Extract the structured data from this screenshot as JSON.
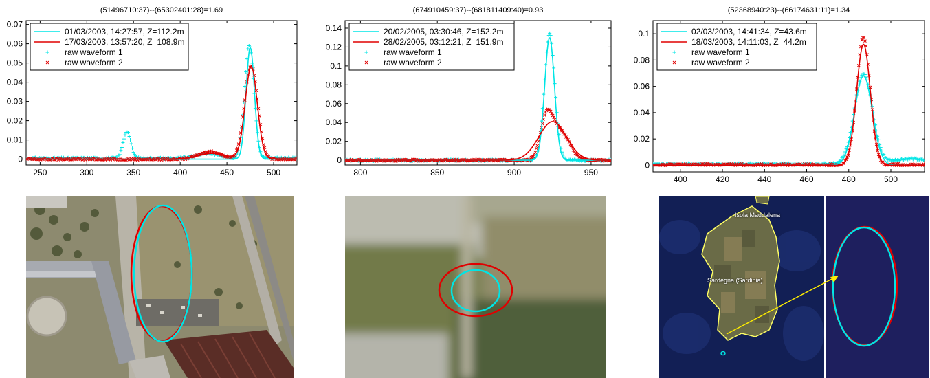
{
  "colors": {
    "waveform_1": "#00e5e5",
    "waveform_2": "#e00000",
    "arrow": "#ffee00",
    "coastline": "#ffff66"
  },
  "chart_data": [
    {
      "type": "line",
      "title": "(51496710:37)--(65302401:28)=1.69",
      "xlim": [
        235,
        525
      ],
      "ylim": [
        -0.003,
        0.072
      ],
      "xticks": [
        250,
        300,
        350,
        400,
        450,
        500
      ],
      "yticks": [
        0,
        0.01,
        0.02,
        0.03,
        0.04,
        0.05,
        0.06,
        0.07
      ],
      "ytick_labels": [
        "0",
        "0.01",
        "0.02",
        "0.03",
        "0.04",
        "0.05",
        "0.06",
        "0.07"
      ],
      "legend_position": "top-left",
      "grid": false,
      "series": [
        {
          "name": "01/03/2003, 14:27:57, Z=112.2m",
          "kind": "fit",
          "peaks": [
            {
              "center": 475,
              "height": 0.058,
              "width": 4.5
            }
          ],
          "baseline": 0
        },
        {
          "name": "17/03/2003, 13:57:20, Z=108.9m",
          "kind": "fit",
          "peaks": [
            {
              "center": 476,
              "height": 0.048,
              "width": 6.5
            },
            {
              "center": 435,
              "height": 0.003,
              "width": 15
            }
          ],
          "baseline": 0
        },
        {
          "name": "raw waveform 1",
          "kind": "raw",
          "marker": "+",
          "peaks": [
            {
              "center": 474,
              "height": 0.059,
              "width": 5
            },
            {
              "center": 343,
              "height": 0.014,
              "width": 4
            },
            {
              "center": 430,
              "height": 0.0025,
              "width": 12
            }
          ],
          "baseline": 0.0005
        },
        {
          "name": "raw waveform 2",
          "kind": "raw",
          "marker": "x",
          "peaks": [
            {
              "center": 476,
              "height": 0.049,
              "width": 7
            },
            {
              "center": 432,
              "height": 0.004,
              "width": 12
            }
          ],
          "baseline": 0.0
        }
      ]
    },
    {
      "type": "line",
      "title": "(674910459:37)--(681811409:40)=0.93",
      "xlim": [
        790,
        963
      ],
      "ylim": [
        -0.005,
        0.148
      ],
      "xticks": [
        800,
        850,
        900,
        950
      ],
      "yticks": [
        0,
        0.02,
        0.04,
        0.06,
        0.08,
        0.1,
        0.12,
        0.14
      ],
      "ytick_labels": [
        "0",
        "0.02",
        "0.04",
        "0.06",
        "0.08",
        "0.1",
        "0.12",
        "0.14"
      ],
      "legend_position": "top-left",
      "grid": false,
      "series": [
        {
          "name": "20/02/2005, 03:30:46, Z=152.2m",
          "kind": "fit",
          "peaks": [
            {
              "center": 923,
              "height": 0.13,
              "width": 3.2
            }
          ],
          "baseline": 0
        },
        {
          "name": "28/02/2005, 03:12:21, Z=151.9m",
          "kind": "fit",
          "peaks": [
            {
              "center": 925,
              "height": 0.041,
              "width": 9
            }
          ],
          "baseline": 0
        },
        {
          "name": "raw waveform 1",
          "kind": "raw",
          "marker": "+",
          "peaks": [
            {
              "center": 923,
              "height": 0.135,
              "width": 3.4
            }
          ],
          "baseline": 0.0
        },
        {
          "name": "raw waveform 2",
          "kind": "raw",
          "marker": "x",
          "peaks": [
            {
              "center": 921,
              "height": 0.043,
              "width": 4
            },
            {
              "center": 930,
              "height": 0.03,
              "width": 6
            }
          ],
          "baseline": 0.0
        }
      ]
    },
    {
      "type": "line",
      "title": "(52368940:23)--(66174631:11)=1.34",
      "xlim": [
        387,
        516
      ],
      "ylim": [
        -0.005,
        0.11
      ],
      "xticks": [
        400,
        420,
        440,
        460,
        480,
        500
      ],
      "yticks": [
        0,
        0.02,
        0.04,
        0.06,
        0.08,
        0.1
      ],
      "ytick_labels": [
        "0",
        "0.02",
        "0.04",
        "0.06",
        "0.08",
        "0.1"
      ],
      "legend_position": "top-left",
      "grid": false,
      "series": [
        {
          "name": "02/03/2003, 14:41:34, Z=43.6m",
          "kind": "fit",
          "peaks": [
            {
              "center": 487,
              "height": 0.068,
              "width": 4.2
            }
          ],
          "baseline": 0
        },
        {
          "name": "18/03/2003, 14:11:03, Z=44.2m",
          "kind": "fit",
          "peaks": [
            {
              "center": 487,
              "height": 0.092,
              "width": 3.3
            }
          ],
          "baseline": 0
        },
        {
          "name": "raw waveform 1",
          "kind": "raw",
          "marker": "+",
          "peaks": [
            {
              "center": 487,
              "height": 0.069,
              "width": 4.3
            },
            {
              "center": 509,
              "height": 0.004,
              "width": 8
            }
          ],
          "baseline": 0.001
        },
        {
          "name": "raw waveform 2",
          "kind": "raw",
          "marker": "x",
          "peaks": [
            {
              "center": 487,
              "height": 0.097,
              "width": 3.2
            }
          ],
          "baseline": 0.0005
        }
      ]
    }
  ],
  "map_labels": {
    "island_north": "Isola Maddalena",
    "island_main": "Sardegna (Sardinia)"
  }
}
